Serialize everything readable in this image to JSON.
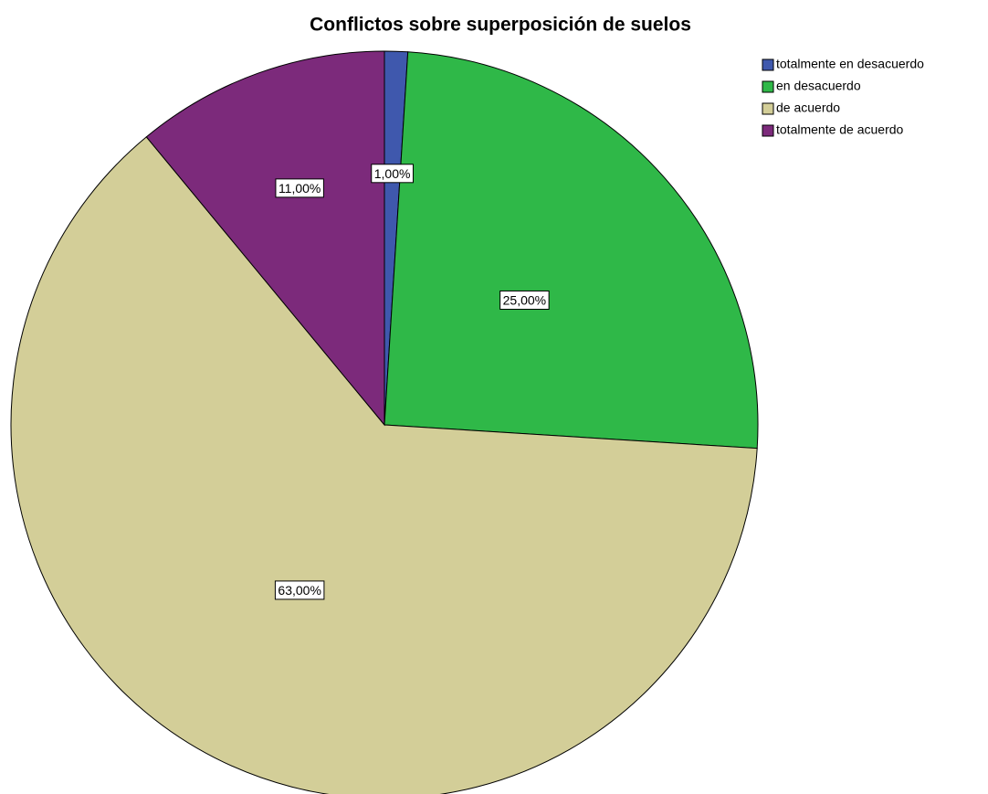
{
  "chart_data": {
    "type": "pie",
    "title": "Conflictos sobre superposición de suelos",
    "categories": [
      "totalmente en desacuerdo",
      "en desacuerdo",
      "de acuerdo",
      "totalmente de acuerdo"
    ],
    "values": [
      1,
      25,
      63,
      11
    ],
    "value_labels": [
      "1,00%",
      "25,00%",
      "63,00%",
      "11,00%"
    ],
    "colors": [
      "#3f58ad",
      "#2fb848",
      "#d3ce98",
      "#7c2a7b"
    ],
    "legend": "top-right"
  }
}
